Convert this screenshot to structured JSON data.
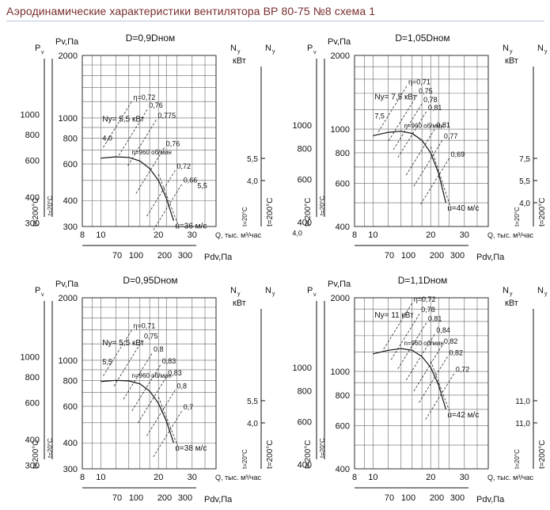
{
  "page": {
    "title": "Аэродинамические характеристики вентилятора ВР 80-75 №8 схема 1",
    "accent_color": "#7a2e2e"
  },
  "common": {
    "pv_axis_label": "Pv,Па",
    "p_symbol": "P",
    "p_sub": "v",
    "n_symbol": "N",
    "n_sub": "y",
    "n_unit": "кВт",
    "q_label": "Q, тыс. м³/час",
    "pdv_label": "Pdv,Па",
    "t_left_label": "t=200°C",
    "t_small_label": "t=20°C",
    "t_right_label": "t=200°C",
    "speed_label": "n=960 об/мин",
    "q_ticks": [
      "8",
      "10",
      "20",
      "30"
    ],
    "pdv_ticks": [
      "70",
      "100",
      "200",
      "300"
    ]
  },
  "chart_data": [
    {
      "id": "d090",
      "type": "line",
      "title": "D=0,9Dном",
      "xlabel": "Q, тыс. м³/час",
      "ylabel": "Pv,Па",
      "xlim": [
        8,
        40
      ],
      "ylim": [
        300,
        2000
      ],
      "pv_ticks": [
        "2000",
        "1000",
        "800",
        "600",
        "400",
        "300"
      ],
      "left_ticks": [
        "1000",
        "800",
        "600",
        "400",
        "300"
      ],
      "n_ticks": [
        "5,5",
        "4,0"
      ],
      "power_label": "Nу= 5,5 кВт",
      "velocity_label": "u=36 м/с",
      "curve_labels": [
        "4,0",
        "5,5",
        "4,0"
      ],
      "efficiency": [
        {
          "label": "η=0,72",
          "q": 14.5,
          "p": 1200
        },
        {
          "label": "0,76",
          "q": 17.5,
          "p": 1100
        },
        {
          "label": "0,775",
          "q": 19.5,
          "p": 980
        },
        {
          "label": "0,76",
          "q": 21.5,
          "p": 720
        },
        {
          "label": "0,72",
          "q": 24.5,
          "p": 560
        },
        {
          "label": "0,66",
          "q": 26.5,
          "p": 480
        }
      ],
      "series": [
        {
          "name": "Pv",
          "x": [
            10,
            12,
            14,
            16,
            18,
            20,
            22,
            24
          ],
          "y": [
            640,
            650,
            645,
            620,
            570,
            500,
            410,
            320
          ]
        },
        {
          "name": "Ny",
          "x": [
            10,
            14,
            18,
            22,
            24
          ],
          "y": [
            4.0,
            4.5,
            5.0,
            5.4,
            5.5
          ]
        }
      ]
    },
    {
      "id": "d105",
      "type": "line",
      "title": "D=1,05Dном",
      "xlabel": "Q, тыс. м³/час",
      "ylabel": "Pv,Па",
      "xlim": [
        8,
        40
      ],
      "ylim": [
        400,
        2000
      ],
      "pv_ticks": [
        "2000",
        "1000",
        "800",
        "600",
        "400"
      ],
      "left_ticks": [
        "1000",
        "800",
        "600",
        "400"
      ],
      "n_ticks": [
        "7,5",
        "5,5",
        "4,0"
      ],
      "power_label": "Nу= 7,5 кВт",
      "velocity_label": "u=40 м/с",
      "curve_labels": [
        "7,5"
      ],
      "efficiency": [
        {
          "label": "η=0,71",
          "q": 15.0,
          "p": 1500
        },
        {
          "label": "0,75",
          "q": 17.0,
          "p": 1380
        },
        {
          "label": "0,78",
          "q": 18.0,
          "p": 1270
        },
        {
          "label": "0,81",
          "q": 19.0,
          "p": 1180
        },
        {
          "label": "0,81",
          "q": 21.0,
          "p": 1000
        },
        {
          "label": "0,77",
          "q": 23.0,
          "p": 900
        },
        {
          "label": "0,69",
          "q": 25.0,
          "p": 760
        }
      ],
      "series": [
        {
          "name": "Pv",
          "x": [
            10,
            12,
            14,
            16,
            18,
            20,
            22,
            24
          ],
          "y": [
            940,
            970,
            980,
            960,
            900,
            800,
            660,
            500
          ]
        },
        {
          "name": "Ny",
          "x": [
            10,
            14,
            18,
            22,
            24
          ],
          "y": [
            5.5,
            6.2,
            6.9,
            7.4,
            7.5
          ]
        }
      ]
    },
    {
      "id": "d095",
      "type": "line",
      "title": "D=0,95Dном",
      "xlabel": "Q, тыс. м³/час",
      "ylabel": "Pv,Па",
      "xlim": [
        8,
        40
      ],
      "ylim": [
        300,
        2000
      ],
      "pv_ticks": [
        "2000",
        "1000",
        "800",
        "600",
        "400",
        "300"
      ],
      "left_ticks": [
        "1000",
        "800",
        "600",
        "400",
        "300"
      ],
      "n_ticks": [
        "5,5",
        "4,0"
      ],
      "power_label": "Nу= 5,5 кВт",
      "velocity_label": "u=38 м/с",
      "curve_labels": [
        "5,5"
      ],
      "efficiency": [
        {
          "label": "η=0,71",
          "q": 14.5,
          "p": 1400
        },
        {
          "label": "0,75",
          "q": 16.5,
          "p": 1250
        },
        {
          "label": "0,8",
          "q": 18.5,
          "p": 1080
        },
        {
          "label": "0,83",
          "q": 20.5,
          "p": 950
        },
        {
          "label": "0,83",
          "q": 22.0,
          "p": 830
        },
        {
          "label": "0,8",
          "q": 24.5,
          "p": 720
        },
        {
          "label": "0,7",
          "q": 26.5,
          "p": 570
        }
      ],
      "series": [
        {
          "name": "Pv",
          "x": [
            10,
            12,
            14,
            16,
            18,
            20,
            22,
            24
          ],
          "y": [
            790,
            800,
            795,
            770,
            710,
            620,
            510,
            400
          ]
        },
        {
          "name": "Ny",
          "x": [
            10,
            14,
            18,
            22,
            24
          ],
          "y": [
            4.0,
            4.6,
            5.1,
            5.4,
            5.5
          ]
        }
      ]
    },
    {
      "id": "d110",
      "type": "line",
      "title": "D=1,1Dном",
      "xlabel": "Q, тыс. м³/час",
      "ylabel": "Pv,Па",
      "xlim": [
        8,
        40
      ],
      "ylim": [
        400,
        2000
      ],
      "pv_ticks": [
        "2000",
        "1000",
        "800",
        "600",
        "400"
      ],
      "left_ticks": [
        "1000",
        "800",
        "600",
        "400"
      ],
      "n_ticks": [
        "11,0",
        "11,0"
      ],
      "power_label": "Nу= 11 кВт",
      "velocity_label": "u=42 м/с",
      "curve_labels": [],
      "efficiency": [
        {
          "label": "η=0,72",
          "q": 16.0,
          "p": 1900
        },
        {
          "label": "0,78",
          "q": 17.5,
          "p": 1720
        },
        {
          "label": "0,81",
          "q": 19.0,
          "p": 1580
        },
        {
          "label": "0,84",
          "q": 21.0,
          "p": 1420
        },
        {
          "label": "0,82",
          "q": 23.0,
          "p": 1280
        },
        {
          "label": "0,82",
          "q": 24.5,
          "p": 1150
        },
        {
          "label": "0,72",
          "q": 26.5,
          "p": 980
        }
      ],
      "series": [
        {
          "name": "Pv",
          "x": [
            10,
            12,
            14,
            16,
            18,
            20,
            22,
            24
          ],
          "y": [
            1180,
            1220,
            1240,
            1220,
            1150,
            1040,
            880,
            700
          ]
        },
        {
          "name": "Ny",
          "x": [
            10,
            14,
            18,
            22,
            24
          ],
          "y": [
            8.0,
            9.2,
            10.2,
            10.8,
            11.0
          ]
        }
      ]
    }
  ]
}
